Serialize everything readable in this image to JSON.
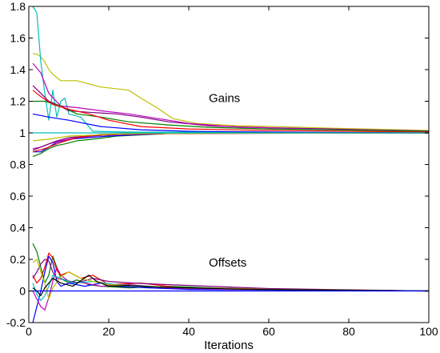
{
  "chart_data": {
    "type": "line",
    "title": "",
    "xlabel": "Iterations",
    "ylabel": "",
    "xlim": [
      0,
      100
    ],
    "ylim": [
      -0.2,
      1.8
    ],
    "x_ticks": [
      "0",
      "20",
      "40",
      "60",
      "80",
      "100"
    ],
    "y_ticks": [
      "-0.2",
      "0",
      "0.2",
      "0.4",
      "0.6",
      "0.8",
      "1",
      "1.2",
      "1.4",
      "1.6",
      "1.8"
    ],
    "grid": false,
    "annotations": [
      {
        "text": "Gains",
        "x": 45,
        "y": 1.22
      },
      {
        "text": "Offsets",
        "x": 45,
        "y": 0.18
      }
    ],
    "reference_lines": [
      {
        "y": 1.0,
        "color": "#00bfbf"
      },
      {
        "y": 0.0,
        "color": "#0000ff"
      }
    ],
    "series": [
      {
        "color": "#bfbf00",
        "points": [
          [
            1,
            1.5
          ],
          [
            2,
            1.5
          ],
          [
            3,
            1.48
          ],
          [
            4,
            1.45
          ],
          [
            5,
            1.4
          ],
          [
            6,
            1.37
          ],
          [
            8,
            1.33
          ],
          [
            12,
            1.33
          ],
          [
            18,
            1.29
          ],
          [
            25,
            1.27
          ],
          [
            28,
            1.22
          ],
          [
            32,
            1.16
          ],
          [
            36,
            1.09
          ],
          [
            42,
            1.06
          ],
          [
            52,
            1.045
          ],
          [
            62,
            1.04
          ],
          [
            75,
            1.03
          ],
          [
            100,
            1.015
          ]
        ]
      },
      {
        "color": "#00bfbf",
        "points": [
          [
            1,
            1.8
          ],
          [
            2,
            1.76
          ],
          [
            3,
            1.45
          ],
          [
            4,
            1.25
          ],
          [
            5,
            1.08
          ],
          [
            6,
            1.27
          ],
          [
            7,
            1.1
          ],
          [
            8,
            1.2
          ],
          [
            9,
            1.22
          ],
          [
            10,
            1.12
          ],
          [
            13,
            1.1
          ],
          [
            16,
            1.01
          ],
          [
            25,
            1.005
          ],
          [
            100,
            1.0
          ]
        ]
      },
      {
        "color": "#7f007f",
        "points": [
          [
            1,
            1.3
          ],
          [
            3,
            1.25
          ],
          [
            5,
            1.2
          ],
          [
            7,
            1.18
          ],
          [
            10,
            1.14
          ],
          [
            15,
            1.13
          ],
          [
            22,
            1.12
          ],
          [
            28,
            1.1
          ],
          [
            35,
            1.07
          ],
          [
            45,
            1.045
          ],
          [
            55,
            1.035
          ],
          [
            75,
            1.025
          ],
          [
            100,
            1.01
          ]
        ]
      },
      {
        "color": "#bf00bf",
        "points": [
          [
            1,
            1.44
          ],
          [
            3,
            1.38
          ],
          [
            5,
            1.25
          ],
          [
            8,
            1.17
          ],
          [
            12,
            1.16
          ],
          [
            18,
            1.14
          ],
          [
            25,
            1.12
          ],
          [
            30,
            1.1
          ],
          [
            40,
            1.06
          ],
          [
            50,
            1.04
          ],
          [
            70,
            1.025
          ],
          [
            100,
            1.012
          ]
        ]
      },
      {
        "color": "#007f00",
        "points": [
          [
            1,
            1.2
          ],
          [
            4,
            1.2
          ],
          [
            8,
            1.17
          ],
          [
            12,
            1.12
          ],
          [
            18,
            1.1
          ],
          [
            25,
            1.07
          ],
          [
            35,
            1.05
          ],
          [
            45,
            1.035
          ],
          [
            60,
            1.025
          ],
          [
            100,
            1.01
          ]
        ]
      },
      {
        "color": "#ff0000",
        "points": [
          [
            1,
            1.27
          ],
          [
            3,
            1.23
          ],
          [
            6,
            1.18
          ],
          [
            10,
            1.15
          ],
          [
            15,
            1.12
          ],
          [
            20,
            1.08
          ],
          [
            28,
            1.04
          ],
          [
            40,
            1.025
          ],
          [
            60,
            1.015
          ],
          [
            100,
            1.005
          ]
        ]
      },
      {
        "color": "#0000ff",
        "points": [
          [
            1,
            1.12
          ],
          [
            5,
            1.1
          ],
          [
            10,
            1.08
          ],
          [
            18,
            1.04
          ],
          [
            28,
            1.02
          ],
          [
            40,
            1.01
          ],
          [
            60,
            1.005
          ],
          [
            100,
            1.0
          ]
        ]
      },
      {
        "color": "#007f00",
        "points": [
          [
            1,
            0.85
          ],
          [
            3,
            0.87
          ],
          [
            5,
            0.9
          ],
          [
            7,
            0.92
          ],
          [
            9,
            0.93
          ],
          [
            12,
            0.95
          ],
          [
            16,
            0.96
          ],
          [
            22,
            0.98
          ],
          [
            30,
            0.99
          ],
          [
            38,
            1.0
          ],
          [
            100,
            1.0
          ]
        ]
      },
      {
        "color": "#0000ff",
        "points": [
          [
            1,
            0.88
          ],
          [
            3,
            0.88
          ],
          [
            5,
            0.91
          ],
          [
            7,
            0.94
          ],
          [
            10,
            0.96
          ],
          [
            15,
            0.97
          ],
          [
            20,
            0.98
          ],
          [
            28,
            0.99
          ],
          [
            36,
            0.997
          ],
          [
            100,
            1.0
          ]
        ]
      },
      {
        "color": "#bf00bf",
        "points": [
          [
            1,
            0.9
          ],
          [
            3,
            0.91
          ],
          [
            5,
            0.93
          ],
          [
            8,
            0.95
          ],
          [
            12,
            0.97
          ],
          [
            18,
            0.985
          ],
          [
            25,
            0.99
          ],
          [
            35,
            0.997
          ],
          [
            100,
            1.0
          ]
        ]
      },
      {
        "color": "#7f007f",
        "points": [
          [
            1,
            0.89
          ],
          [
            4,
            0.92
          ],
          [
            7,
            0.95
          ],
          [
            10,
            0.97
          ],
          [
            15,
            0.98
          ],
          [
            22,
            0.99
          ],
          [
            32,
            0.997
          ],
          [
            100,
            1.0
          ]
        ]
      },
      {
        "color": "#ff0000",
        "points": [
          [
            1,
            0.88
          ],
          [
            4,
            0.9
          ],
          [
            8,
            0.94
          ],
          [
            12,
            0.97
          ],
          [
            18,
            0.99
          ],
          [
            26,
            0.995
          ],
          [
            100,
            1.0
          ]
        ]
      },
      {
        "color": "#bfbf00",
        "points": [
          [
            1,
            0.95
          ],
          [
            5,
            0.96
          ],
          [
            10,
            0.98
          ],
          [
            20,
            0.99
          ],
          [
            30,
            0.997
          ],
          [
            100,
            1.0
          ]
        ]
      },
      {
        "color": "#007f00",
        "points": [
          [
            1,
            0.3
          ],
          [
            2,
            0.25
          ],
          [
            3,
            0.15
          ],
          [
            4,
            0.05
          ],
          [
            5,
            0.1
          ],
          [
            6,
            0.22
          ],
          [
            7,
            0.15
          ],
          [
            8,
            0.08
          ],
          [
            10,
            0.05
          ],
          [
            12,
            0.07
          ],
          [
            15,
            0.04
          ],
          [
            18,
            0.03
          ],
          [
            25,
            0.02
          ],
          [
            35,
            0.03
          ],
          [
            45,
            0.02
          ],
          [
            60,
            0.01
          ],
          [
            100,
            0.0
          ]
        ]
      },
      {
        "color": "#0000ff",
        "points": [
          [
            1,
            -0.2
          ],
          [
            2,
            -0.1
          ],
          [
            3,
            0.0
          ],
          [
            4,
            0.12
          ],
          [
            5,
            0.22
          ],
          [
            6,
            0.18
          ],
          [
            7,
            0.06
          ],
          [
            8,
            0.03
          ],
          [
            10,
            0.05
          ],
          [
            14,
            0.03
          ],
          [
            18,
            0.05
          ],
          [
            22,
            0.03
          ],
          [
            30,
            0.02
          ],
          [
            40,
            0.01
          ],
          [
            100,
            0.0
          ]
        ]
      },
      {
        "color": "#bf00bf",
        "points": [
          [
            1,
            0.0
          ],
          [
            2,
            -0.05
          ],
          [
            3,
            -0.1
          ],
          [
            4,
            -0.12
          ],
          [
            5,
            -0.04
          ],
          [
            6,
            0.06
          ],
          [
            7,
            0.15
          ],
          [
            8,
            0.1
          ],
          [
            10,
            0.06
          ],
          [
            14,
            0.05
          ],
          [
            18,
            0.03
          ],
          [
            25,
            0.04
          ],
          [
            35,
            0.02
          ],
          [
            50,
            0.01
          ],
          [
            100,
            0.0
          ]
        ]
      },
      {
        "color": "#ff0000",
        "points": [
          [
            1,
            0.1
          ],
          [
            2,
            0.05
          ],
          [
            3,
            0.08
          ],
          [
            4,
            0.15
          ],
          [
            5,
            0.24
          ],
          [
            6,
            0.21
          ],
          [
            7,
            0.13
          ],
          [
            8,
            0.1
          ],
          [
            10,
            0.12
          ],
          [
            13,
            0.08
          ],
          [
            16,
            0.1
          ],
          [
            20,
            0.04
          ],
          [
            28,
            0.05
          ],
          [
            38,
            0.02
          ],
          [
            50,
            0.015
          ],
          [
            100,
            0.0
          ]
        ]
      },
      {
        "color": "#7f007f",
        "points": [
          [
            1,
            0.08
          ],
          [
            2,
            0.12
          ],
          [
            3,
            0.17
          ],
          [
            4,
            0.2
          ],
          [
            5,
            0.19
          ],
          [
            6,
            0.12
          ],
          [
            7,
            0.08
          ],
          [
            9,
            0.07
          ],
          [
            12,
            0.05
          ],
          [
            16,
            0.08
          ],
          [
            20,
            0.06
          ],
          [
            26,
            0.05
          ],
          [
            35,
            0.04
          ],
          [
            45,
            0.03
          ],
          [
            60,
            0.015
          ],
          [
            100,
            0.0
          ]
        ]
      },
      {
        "color": "#00bfbf",
        "points": [
          [
            1,
            0.05
          ],
          [
            2,
            -0.02
          ],
          [
            3,
            -0.06
          ],
          [
            4,
            -0.03
          ],
          [
            5,
            0.03
          ],
          [
            6,
            0.1
          ],
          [
            8,
            0.08
          ],
          [
            11,
            0.05
          ],
          [
            16,
            0.06
          ],
          [
            22,
            0.04
          ],
          [
            30,
            0.03
          ],
          [
            40,
            0.02
          ],
          [
            55,
            0.01
          ],
          [
            100,
            0.0
          ]
        ]
      },
      {
        "color": "#bfbf00",
        "points": [
          [
            1,
            0.18
          ],
          [
            2,
            0.2
          ],
          [
            3,
            0.12
          ],
          [
            4,
            0.05
          ],
          [
            5,
            -0.05
          ],
          [
            6,
            0.02
          ],
          [
            8,
            0.09
          ],
          [
            10,
            0.12
          ],
          [
            13,
            0.08
          ],
          [
            16,
            0.06
          ],
          [
            20,
            0.04
          ],
          [
            28,
            0.03
          ],
          [
            40,
            0.02
          ],
          [
            60,
            0.01
          ],
          [
            100,
            0.0
          ]
        ]
      },
      {
        "color": "#000000",
        "points": [
          [
            1,
            0.02
          ],
          [
            2,
            0.0
          ],
          [
            3,
            -0.03
          ],
          [
            4,
            0.02
          ],
          [
            6,
            0.08
          ],
          [
            8,
            0.05
          ],
          [
            11,
            0.03
          ],
          [
            15,
            0.1
          ],
          [
            17,
            0.06
          ],
          [
            20,
            0.03
          ],
          [
            25,
            0.035
          ],
          [
            32,
            0.025
          ],
          [
            40,
            0.02
          ],
          [
            55,
            0.01
          ],
          [
            100,
            0.0
          ]
        ]
      }
    ]
  }
}
